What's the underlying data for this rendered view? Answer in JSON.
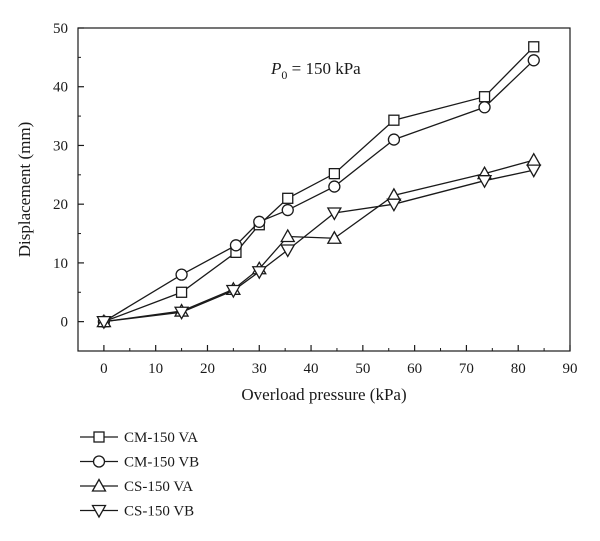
{
  "chart_data": {
    "type": "line",
    "xlabel": "Overload pressure (kPa)",
    "ylabel": "Displacement (mm)",
    "xlim": [
      -5,
      90
    ],
    "ylim": [
      -5,
      50
    ],
    "xticks": [
      0,
      10,
      20,
      30,
      40,
      50,
      60,
      70,
      80,
      90
    ],
    "yticks": [
      0,
      10,
      20,
      30,
      40,
      50
    ],
    "grid": false,
    "legend_position": "bottom-left",
    "annotation": {
      "main": "P",
      "sub": "0",
      "rest": " = 150 kPa"
    },
    "series": [
      {
        "name": "CM-150 VA",
        "marker": "square",
        "x": [
          0,
          15,
          25.5,
          30,
          35.5,
          44.5,
          56,
          73.5,
          83
        ],
        "y": [
          0,
          5,
          11.8,
          16.5,
          21,
          25.2,
          34.3,
          38.3,
          46.8
        ]
      },
      {
        "name": "CM-150 VB",
        "marker": "circle",
        "x": [
          0,
          15,
          25.5,
          30,
          35.5,
          44.5,
          56,
          73.5,
          83
        ],
        "y": [
          0,
          8,
          13,
          17,
          19,
          23,
          31,
          36.5,
          44.5
        ]
      },
      {
        "name": "CS-150 VA",
        "marker": "triangle-up",
        "x": [
          0,
          15,
          25,
          30,
          35.5,
          44.5,
          56,
          73.5,
          83
        ],
        "y": [
          0,
          1.8,
          5.5,
          9,
          14.5,
          14.2,
          21.5,
          25.2,
          27.5
        ]
      },
      {
        "name": "CS-150 VB",
        "marker": "triangle-down",
        "x": [
          0,
          15,
          25,
          30,
          35.5,
          44.5,
          56,
          73.5,
          83
        ],
        "y": [
          0,
          1.6,
          5.3,
          8.5,
          12.2,
          18.5,
          20,
          24,
          25.8
        ]
      }
    ]
  }
}
